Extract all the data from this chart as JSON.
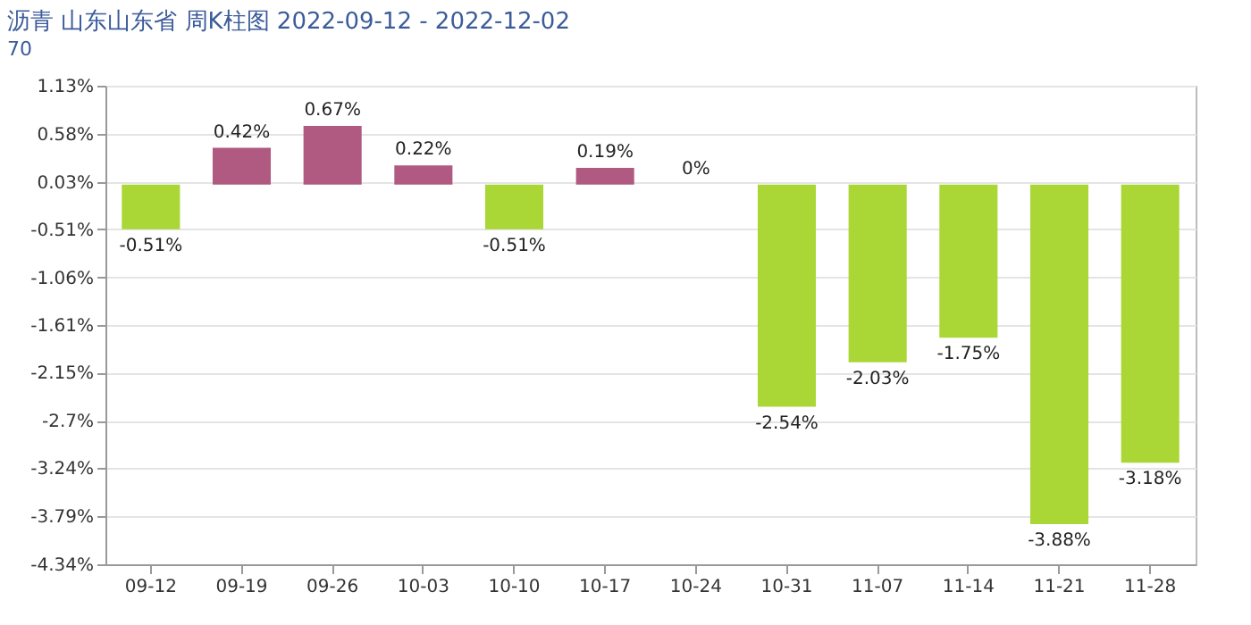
{
  "chart_data": {
    "type": "bar",
    "title": "沥青 山东山东省 周K柱图 2022-09-12 - 2022-12-02",
    "subtitle": "70",
    "categories": [
      "09-12",
      "09-19",
      "09-26",
      "10-03",
      "10-10",
      "10-17",
      "10-24",
      "10-31",
      "11-07",
      "11-14",
      "11-21",
      "11-28"
    ],
    "values": [
      -0.51,
      0.42,
      0.67,
      0.22,
      -0.51,
      0.19,
      0,
      -2.54,
      -2.03,
      -1.75,
      -3.88,
      -3.18
    ],
    "colors": [
      "#aad636",
      "#b05a82",
      "#b05a82",
      "#b05a82",
      "#aad636",
      "#b05a82",
      "#aad636",
      "#aad636",
      "#aad636",
      "#aad636",
      "#aad636",
      "#aad636"
    ],
    "value_labels": [
      "-0.51%",
      "0.42%",
      "0.67%",
      "0.22%",
      "-0.51%",
      "0.19%",
      "0%",
      "-2.54%",
      "-2.03%",
      "-1.75%",
      "-3.88%",
      "-3.18%"
    ],
    "ylim": [
      -4.34,
      1.13
    ],
    "yticks": [
      {
        "value": 1.13,
        "label": "1.13%"
      },
      {
        "value": 0.58,
        "label": "0.58%"
      },
      {
        "value": 0.03,
        "label": "0.03%"
      },
      {
        "value": -0.51,
        "label": "-0.51%"
      },
      {
        "value": -1.06,
        "label": "-1.06%"
      },
      {
        "value": -1.61,
        "label": "-1.61%"
      },
      {
        "value": -2.15,
        "label": "-2.15%"
      },
      {
        "value": -2.7,
        "label": "-2.7%"
      },
      {
        "value": -3.24,
        "label": "-3.24%"
      },
      {
        "value": -3.79,
        "label": "-3.79%"
      },
      {
        "value": -4.34,
        "label": "-4.34%"
      }
    ],
    "grid": "y"
  }
}
